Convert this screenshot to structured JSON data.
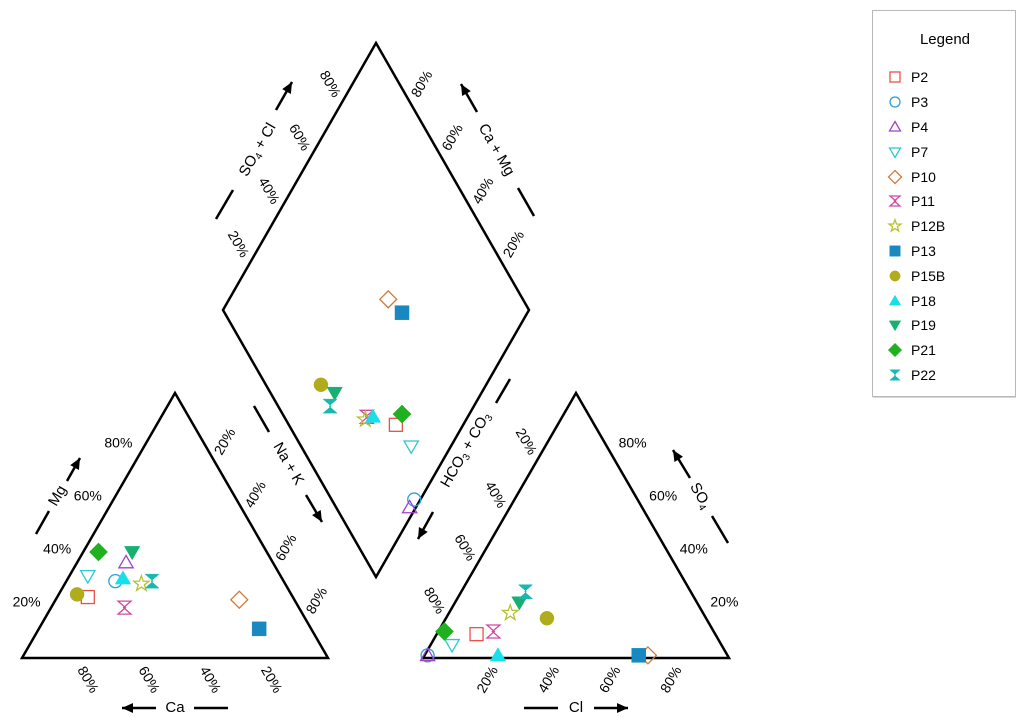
{
  "chart_data": {
    "type": "scatter",
    "legend_title": "Legend",
    "legend_position": "top-right",
    "ticks": [
      "20%",
      "40%",
      "60%",
      "80%"
    ],
    "axis_labels": {
      "cation_ca": "Ca",
      "cation_mg": "Mg",
      "cation_nak": "Na + K",
      "anion_cl": "Cl",
      "anion_so4": "SO",
      "anion_so4_sub": "4",
      "anion_hco3": "HCO",
      "anion_hco3_sub": "3",
      "anion_co3": " + CO",
      "anion_co3_sub": "3",
      "diamond_so4cl": "SO",
      "diamond_so4cl_sub": "4",
      "diamond_so4cl_rest": " + Cl",
      "diamond_camg": "Ca + Mg"
    },
    "series": [
      {
        "name": "P2",
        "marker": "square",
        "filled": false,
        "color": "#e8504a",
        "cation": {
          "ca": 67,
          "mg": 23
        },
        "anion": {
          "cl": 13,
          "so4": 9
        },
        "diamond": {
          "so4cl": 22,
          "camg": 35
        }
      },
      {
        "name": "P3",
        "marker": "circle",
        "filled": false,
        "color": "#2a9fd8",
        "cation": {
          "ca": 55,
          "mg": 29
        },
        "anion": {
          "cl": 1,
          "so4": 1
        },
        "diamond": {
          "so4cl": 2,
          "camg": 27
        }
      },
      {
        "name": "P4",
        "marker": "triangle",
        "filled": false,
        "color": "#a040d0",
        "cation": {
          "ca": 48,
          "mg": 36
        },
        "anion": {
          "cl": 1,
          "so4": 1
        },
        "diamond": {
          "so4cl": 2,
          "camg": 24
        }
      },
      {
        "name": "P7",
        "marker": "tri-down",
        "filled": false,
        "color": "#2ec8d0",
        "cation": {
          "ca": 63,
          "mg": 31
        },
        "anion": {
          "cl": 7,
          "so4": 5
        },
        "diamond": {
          "so4cl": 13,
          "camg": 36
        }
      },
      {
        "name": "P10",
        "marker": "diamond",
        "filled": false,
        "color": "#d07a3a",
        "cation": {
          "ca": 18,
          "mg": 22
        },
        "anion": {
          "cl": 73,
          "so4": 1
        },
        "diamond": {
          "so4cl": 48,
          "camg": 56
        }
      },
      {
        "name": "P11",
        "marker": "hourglass",
        "filled": false,
        "color": "#d04aa0",
        "cation": {
          "ca": 57,
          "mg": 19
        },
        "anion": {
          "cl": 18,
          "so4": 10
        },
        "diamond": {
          "so4cl": 33,
          "camg": 27
        }
      },
      {
        "name": "P12B",
        "marker": "star",
        "filled": false,
        "color": "#b8c030",
        "cation": {
          "ca": 47,
          "mg": 28
        },
        "anion": {
          "cl": 20,
          "so4": 17
        },
        "diamond": {
          "so4cl": 33,
          "camg": 26
        }
      },
      {
        "name": "P13",
        "marker": "square",
        "filled": true,
        "color": "#1a88c0",
        "cation": {
          "ca": 17,
          "mg": 11
        },
        "anion": {
          "cl": 70,
          "so4": 1
        },
        "diamond": {
          "so4cl": 41,
          "camg": 58
        }
      },
      {
        "name": "P15B",
        "marker": "circle",
        "filled": true,
        "color": "#b0ac1c",
        "cation": {
          "ca": 70,
          "mg": 24
        },
        "anion": {
          "cl": 33,
          "so4": 15
        },
        "diamond": {
          "so4cl": 54,
          "camg": 18
        }
      },
      {
        "name": "P18",
        "marker": "triangle",
        "filled": true,
        "color": "#18e0e8",
        "cation": {
          "ca": 52,
          "mg": 30
        },
        "anion": {
          "cl": 24,
          "so4": 1
        },
        "diamond": {
          "so4cl": 31,
          "camg": 29
        }
      },
      {
        "name": "P19",
        "marker": "tri-down",
        "filled": true,
        "color": "#18b070",
        "cation": {
          "ca": 44,
          "mg": 40
        },
        "anion": {
          "cl": 21,
          "so4": 21
        },
        "diamond": {
          "so4cl": 48,
          "camg": 21
        }
      },
      {
        "name": "P21",
        "marker": "diamond",
        "filled": true,
        "color": "#20b020",
        "cation": {
          "ca": 55,
          "mg": 40
        },
        "anion": {
          "cl": 2,
          "so4": 10
        },
        "diamond": {
          "so4cl": 22,
          "camg": 39
        }
      },
      {
        "name": "P22",
        "marker": "hourglass",
        "filled": true,
        "color": "#18b8b0",
        "cation": {
          "ca": 43,
          "mg": 29
        },
        "anion": {
          "cl": 21,
          "so4": 25
        },
        "diamond": {
          "so4cl": 47,
          "camg": 17
        }
      }
    ]
  }
}
